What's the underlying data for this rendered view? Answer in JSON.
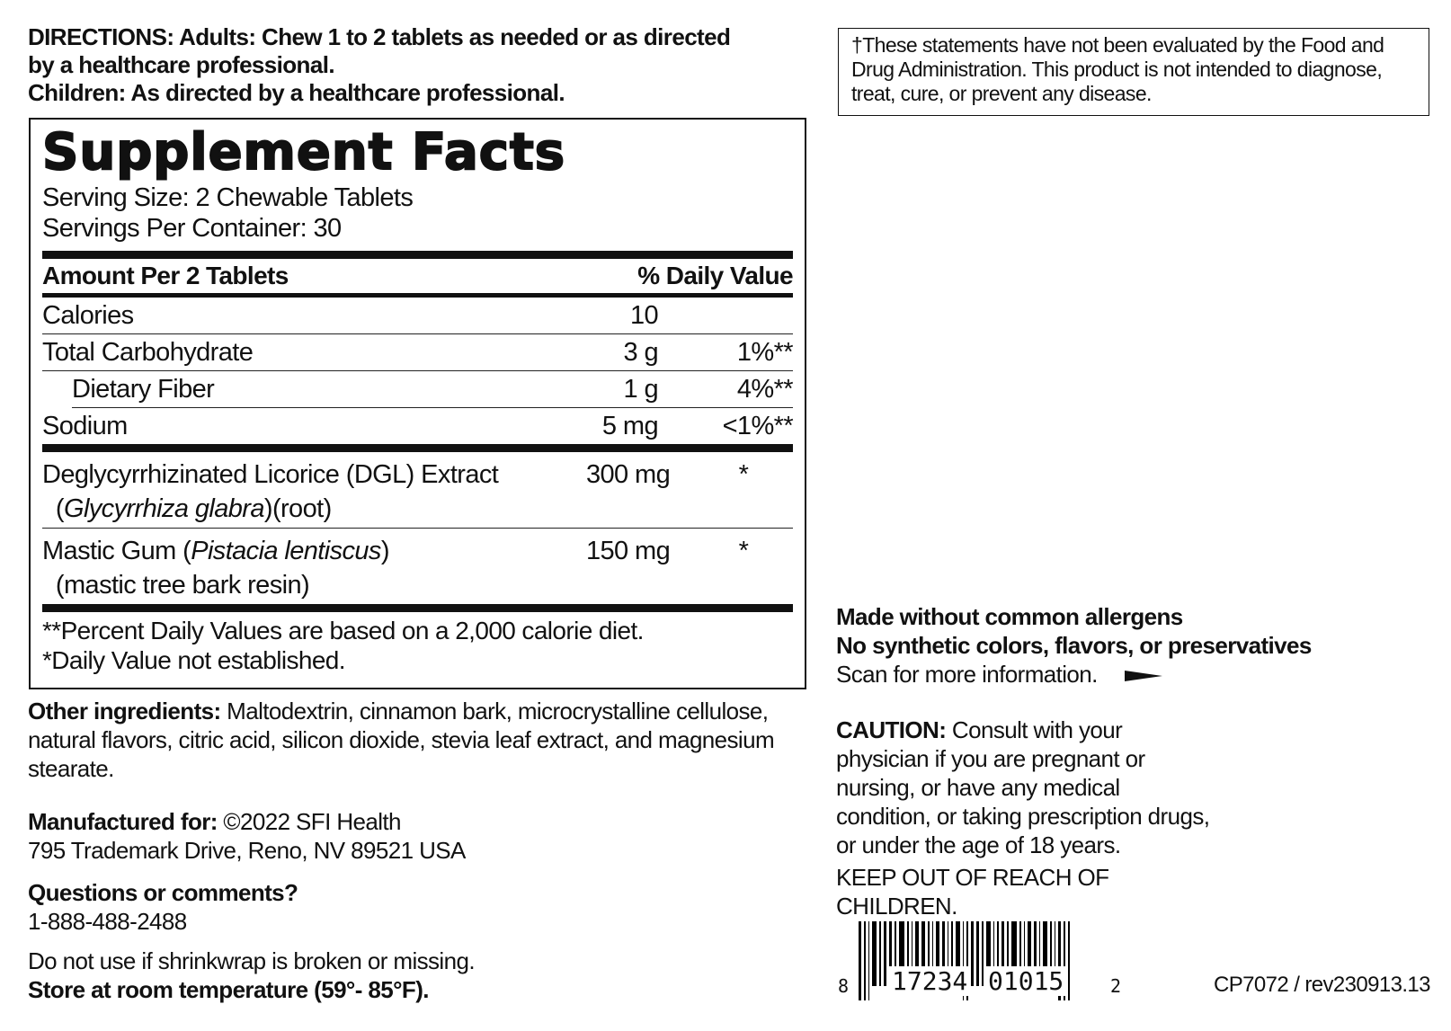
{
  "directions": {
    "line1": "DIRECTIONS: Adults: Chew 1 to 2 tablets as needed or as directed",
    "line2": "by a healthcare professional.",
    "line3": "Children: As directed by a healthcare professional."
  },
  "facts": {
    "title": "Supplement Facts",
    "serving_size": "Serving Size: 2 Chewable Tablets",
    "servings_per_container": "Servings Per Container: 30",
    "amount_header": "Amount Per 2 Tablets",
    "dv_header": "% Daily Value",
    "rows": [
      {
        "name": "Calories",
        "amount": "10",
        "dv": ""
      },
      {
        "name": "Total Carbohydrate",
        "amount": "3 g",
        "dv": "1%**"
      },
      {
        "name": "Dietary Fiber",
        "amount": "1 g",
        "dv": "4%**"
      },
      {
        "name": "Sodium",
        "amount": "5 mg",
        "dv": "<1%**"
      }
    ],
    "dgl": {
      "name": "Deglycyrrhizinated Licorice (DGL) Extract",
      "latin": "Glycyrrhiza glabra",
      "part": "(root)",
      "amount": "300 mg",
      "dv": "*"
    },
    "mastic": {
      "name": "Mastic Gum (",
      "latin": "Pistacia lentiscus",
      "close": ")",
      "sub": "(mastic tree bark resin)",
      "amount": "150 mg",
      "dv": "*"
    },
    "foot1": "**Percent Daily Values are based on a 2,000 calorie diet.",
    "foot2": "*Daily Value not established."
  },
  "disclaimer": "†These statements have not been evaluated by the Food and Drug Administration. This product is not intended to diagnose, treat, cure, or prevent any disease.",
  "other": {
    "label": "Other ingredients:",
    "text": " Maltodextrin, cinnamon bark, microcrystalline cellulose, natural flavors, citric acid, silicon dioxide, stevia leaf extract, and magnesium stearate."
  },
  "mfg": {
    "label": "Manufactured for:",
    "text": " ©2022 SFI Health",
    "address": "795 Trademark Drive, Reno, NV 89521 USA"
  },
  "questions": {
    "label": "Questions or comments?",
    "phone": "1-888-488-2488"
  },
  "shrink": "Do not use if shrinkwrap is broken or missing.",
  "store": "Store at room temperature (59°- 85°F).",
  "claims": {
    "l1": "Made without common allergens",
    "l2": "No synthetic colors, flavors, or preservatives",
    "scan": "Scan for more information."
  },
  "caution": {
    "label": "CAUTION:",
    "text": " Consult with your physician if you are pregnant or nursing, or have any medical condition, or taking prescription drugs, or under the age of 18 years.",
    "keep": "KEEP OUT OF REACH OF CHILDREN."
  },
  "barcode": {
    "first": "8",
    "left": "17234",
    "right": "01015",
    "last": "2"
  },
  "code": "CP7072 / rev230913.13"
}
